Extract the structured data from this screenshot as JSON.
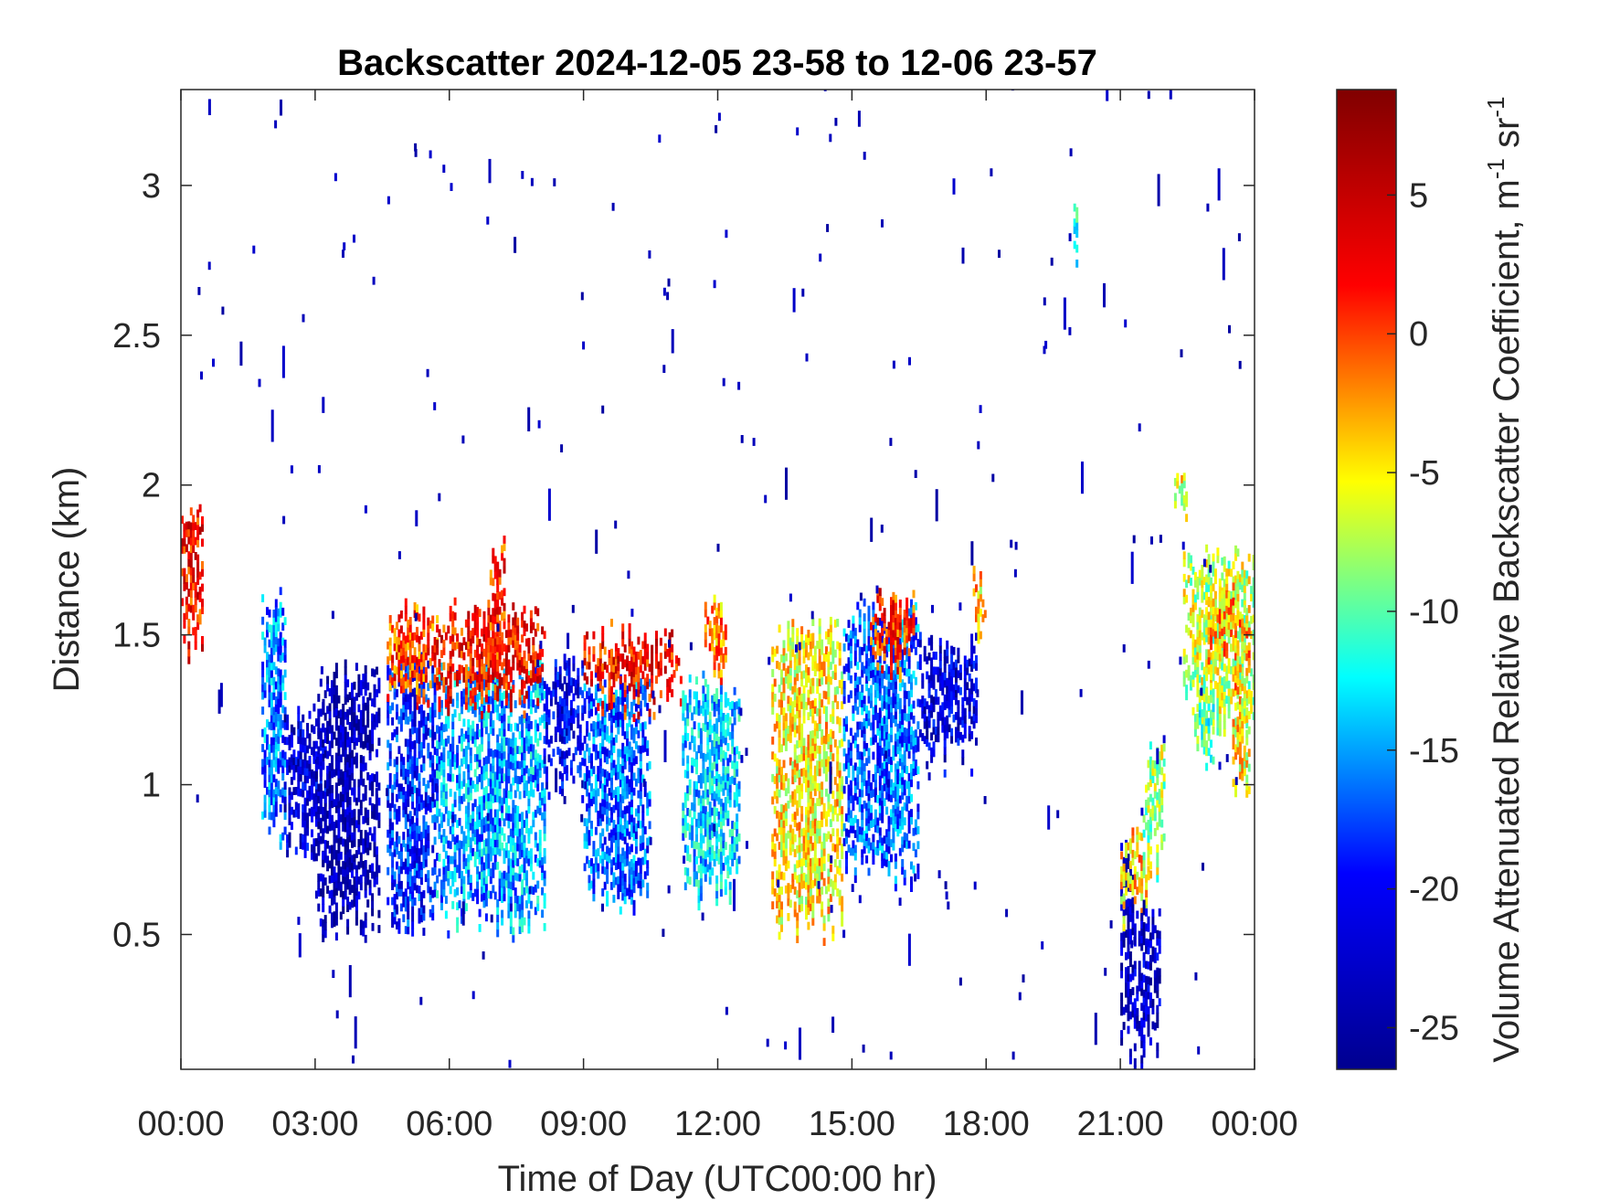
{
  "chart_data": {
    "type": "heatmap",
    "title": "Backscatter 2024-12-05 23-58 to 12-06 23-57",
    "xlabel": "Time of Day (UTC00:00 hr)",
    "ylabel": "Distance (km)",
    "colorbar_label": "Volume Attenuated Relative Backscatter Coefficient, m",
    "colorbar_unit_sup1": "-1",
    "colorbar_unit_mid": " sr",
    "colorbar_unit_sup2": "-1",
    "x_range_hours": [
      0,
      24
    ],
    "x_ticks_hours": [
      0,
      3,
      6,
      9,
      12,
      15,
      18,
      21,
      24
    ],
    "x_tick_labels": [
      "00:00",
      "03:00",
      "06:00",
      "09:00",
      "12:00",
      "15:00",
      "18:00",
      "21:00",
      "00:00"
    ],
    "y_range_km": [
      0.05,
      3.32
    ],
    "y_ticks_km": [
      0.5,
      1,
      1.5,
      2,
      2.5,
      3
    ],
    "y_tick_labels": [
      "0.5",
      "1",
      "1.5",
      "2",
      "2.5",
      "3"
    ],
    "colorbar_range": [
      -26.5,
      8.8
    ],
    "colorbar_ticks": [
      -25,
      -20,
      -15,
      -10,
      -5,
      0,
      5
    ],
    "colorbar_tick_labels": [
      "-25",
      "-20",
      "-15",
      "-10",
      "-5",
      "0",
      "5"
    ],
    "colormap": "jet",
    "colormap_stops": [
      "#00008f",
      "#0000ff",
      "#00ffff",
      "#ffff00",
      "#ff0000",
      "#800000"
    ],
    "grid": false,
    "cloud_regions": [
      {
        "t": [
          0.0,
          0.45
        ],
        "base_km": 1.45,
        "top_km": 1.9,
        "value_db": 2
      },
      {
        "t": [
          1.8,
          2.3
        ],
        "base_km": 0.85,
        "top_km": 1.62,
        "value_db": -16
      },
      {
        "t": [
          2.3,
          3.2
        ],
        "base_km": 0.8,
        "top_km": 1.2,
        "value_db": -22
      },
      {
        "t": [
          3.0,
          4.4
        ],
        "base_km": 0.55,
        "top_km": 1.35,
        "value_db": -24
      },
      {
        "t": [
          4.6,
          5.7
        ],
        "base_km": 0.58,
        "top_km": 1.38,
        "value_db": -19
      },
      {
        "t": [
          4.6,
          5.7
        ],
        "base_km": 1.3,
        "top_km": 1.55,
        "value_db": 0
      },
      {
        "t": [
          5.7,
          8.1
        ],
        "base_km": 0.55,
        "top_km": 1.35,
        "value_db": -15
      },
      {
        "t": [
          5.7,
          8.1
        ],
        "base_km": 1.3,
        "top_km": 1.55,
        "value_db": 2
      },
      {
        "t": [
          6.9,
          7.2
        ],
        "base_km": 1.45,
        "top_km": 1.78,
        "value_db": 1
      },
      {
        "t": [
          8.1,
          9.0
        ],
        "base_km": 1.0,
        "top_km": 1.38,
        "value_db": -21
      },
      {
        "t": [
          9.0,
          10.5
        ],
        "base_km": 0.65,
        "top_km": 1.32,
        "value_db": -17
      },
      {
        "t": [
          9.0,
          11.2
        ],
        "base_km": 1.3,
        "top_km": 1.48,
        "value_db": 2
      },
      {
        "t": [
          11.2,
          12.5
        ],
        "base_km": 0.65,
        "top_km": 1.3,
        "value_db": -14
      },
      {
        "t": [
          11.7,
          12.2
        ],
        "base_km": 1.4,
        "top_km": 1.6,
        "value_db": -2
      },
      {
        "t": [
          13.2,
          14.8
        ],
        "base_km": 0.55,
        "top_km": 1.5,
        "value_db": -5
      },
      {
        "t": [
          14.8,
          16.5
        ],
        "base_km": 0.7,
        "top_km": 1.55,
        "value_db": -17
      },
      {
        "t": [
          15.4,
          16.4
        ],
        "base_km": 1.42,
        "top_km": 1.6,
        "value_db": 1
      },
      {
        "t": [
          16.5,
          17.8
        ],
        "base_km": 1.1,
        "top_km": 1.45,
        "value_db": -22
      },
      {
        "t": [
          17.7,
          18.0
        ],
        "base_km": 1.5,
        "top_km": 1.68,
        "value_db": -4
      },
      {
        "t": [
          21.0,
          21.3
        ],
        "base_km": 0.15,
        "top_km": 0.75,
        "value_db": -24
      },
      {
        "t": [
          21.0,
          21.7
        ],
        "base_km": 0.6,
        "top_km": 0.8,
        "value_db": -4
      },
      {
        "t": [
          21.3,
          21.9
        ],
        "base_km": 0.1,
        "top_km": 0.55,
        "value_db": -23
      },
      {
        "t": [
          21.5,
          22.0
        ],
        "base_km": 0.75,
        "top_km": 1.1,
        "value_db": -8
      },
      {
        "t": [
          22.2,
          22.5
        ],
        "base_km": 1.9,
        "top_km": 2.05,
        "value_db": -6
      },
      {
        "t": [
          22.4,
          24.0
        ],
        "base_km": 1.25,
        "top_km": 1.75,
        "value_db": -7
      },
      {
        "t": [
          22.9,
          23.9
        ],
        "base_km": 1.4,
        "top_km": 1.62,
        "value_db": -3
      },
      {
        "t": [
          23.5,
          23.9
        ],
        "base_km": 1.0,
        "top_km": 1.3,
        "value_db": -5
      },
      {
        "t": [
          22.6,
          23.1
        ],
        "base_km": 1.1,
        "top_km": 1.3,
        "value_db": -10
      },
      {
        "t": [
          19.95,
          20.1
        ],
        "base_km": 2.8,
        "top_km": 2.9,
        "value_db": -12
      }
    ]
  }
}
